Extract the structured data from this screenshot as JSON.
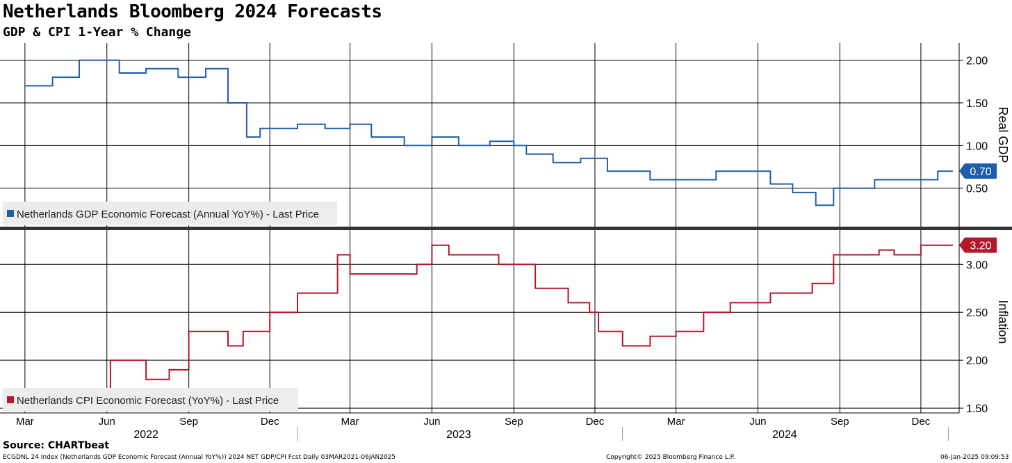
{
  "header": {
    "title": "Netherlands Bloomberg 2024 Forecasts",
    "subtitle": "GDP & CPI 1-Year % Change"
  },
  "footer": {
    "source": "Source: CHARTbeat",
    "description": "ECGDNL 24 Index (Netherlands GDP Economic Forecast (Annual YoY%)) 2024 NET GDP/CPI Fcst  Daily 03MAR2021-06JAN2025",
    "copyright": "Copyright© 2025 Bloomberg Finance L.P.",
    "timestamp": "06-Jan-2025 09:09:53"
  },
  "colors": {
    "gdp": "#1f5ea8",
    "cpi": "#b2182b",
    "grid": "#000000"
  },
  "chart_data": [
    {
      "type": "line",
      "panel": "top",
      "ylabel": "Real GDP",
      "ylim": [
        0.05,
        2.2
      ],
      "yticks": [
        "0.50",
        "1.00",
        "1.50",
        "2.00"
      ],
      "grid": true,
      "legend": "bottom-left",
      "last_value_label": "0.70",
      "series": [
        {
          "name": "Netherlands GDP Economic Forecast (Annual YoY%) - Last Price",
          "points": [
            [
              "2022-03-01",
              1.7
            ],
            [
              "2022-04-01",
              1.8
            ],
            [
              "2022-05-01",
              2.0
            ],
            [
              "2022-06-15",
              1.85
            ],
            [
              "2022-07-15",
              1.9
            ],
            [
              "2022-08-20",
              1.8
            ],
            [
              "2022-09-20",
              1.9
            ],
            [
              "2022-10-15",
              1.5
            ],
            [
              "2022-11-05",
              1.1
            ],
            [
              "2022-11-20",
              1.2
            ],
            [
              "2022-12-05",
              1.2
            ],
            [
              "2023-01-01",
              1.25
            ],
            [
              "2023-02-01",
              1.2
            ],
            [
              "2023-03-01",
              1.25
            ],
            [
              "2023-03-25",
              1.1
            ],
            [
              "2023-04-15",
              1.1
            ],
            [
              "2023-05-01",
              1.0
            ],
            [
              "2023-06-01",
              1.1
            ],
            [
              "2023-07-01",
              1.0
            ],
            [
              "2023-08-05",
              1.05
            ],
            [
              "2023-09-01",
              1.0
            ],
            [
              "2023-09-15",
              0.9
            ],
            [
              "2023-10-15",
              0.8
            ],
            [
              "2023-11-15",
              0.85
            ],
            [
              "2023-12-15",
              0.7
            ],
            [
              "2024-02-01",
              0.6
            ],
            [
              "2024-03-15",
              0.6
            ],
            [
              "2024-04-15",
              0.7
            ],
            [
              "2024-06-15",
              0.55
            ],
            [
              "2024-07-10",
              0.45
            ],
            [
              "2024-08-05",
              0.3
            ],
            [
              "2024-08-25",
              0.5
            ],
            [
              "2024-10-10",
              0.6
            ],
            [
              "2024-12-01",
              0.6
            ],
            [
              "2024-12-20",
              0.7
            ],
            [
              "2025-01-06",
              0.7
            ]
          ]
        }
      ]
    },
    {
      "type": "line",
      "panel": "bottom",
      "ylabel": "Inflation",
      "ylim": [
        1.45,
        3.35
      ],
      "yticks": [
        "1.50",
        "2.00",
        "2.50",
        "3.00"
      ],
      "grid": true,
      "legend": "bottom-left",
      "last_value_label": "3.20",
      "series": [
        {
          "name": "Netherlands CPI Economic Forecast (YoY%) - Last Price",
          "points": [
            [
              "2022-04-15",
              1.6
            ],
            [
              "2022-05-10",
              1.65
            ],
            [
              "2022-06-05",
              2.0
            ],
            [
              "2022-07-15",
              1.8
            ],
            [
              "2022-08-10",
              1.9
            ],
            [
              "2022-09-01",
              2.3
            ],
            [
              "2022-10-15",
              2.15
            ],
            [
              "2022-11-01",
              2.3
            ],
            [
              "2022-12-01",
              2.5
            ],
            [
              "2023-01-01",
              2.7
            ],
            [
              "2023-02-15",
              3.1
            ],
            [
              "2023-03-01",
              2.9
            ],
            [
              "2023-04-01",
              2.9
            ],
            [
              "2023-05-01",
              2.9
            ],
            [
              "2023-05-15",
              3.0
            ],
            [
              "2023-06-01",
              3.2
            ],
            [
              "2023-06-20",
              3.1
            ],
            [
              "2023-08-01",
              3.1
            ],
            [
              "2023-08-15",
              3.0
            ],
            [
              "2023-09-10",
              3.0
            ],
            [
              "2023-09-25",
              2.75
            ],
            [
              "2023-11-01",
              2.6
            ],
            [
              "2023-11-25",
              2.5
            ],
            [
              "2023-12-05",
              2.3
            ],
            [
              "2024-01-01",
              2.15
            ],
            [
              "2024-02-01",
              2.25
            ],
            [
              "2024-03-01",
              2.3
            ],
            [
              "2024-04-01",
              2.5
            ],
            [
              "2024-05-01",
              2.6
            ],
            [
              "2024-06-15",
              2.7
            ],
            [
              "2024-08-01",
              2.8
            ],
            [
              "2024-08-25",
              3.1
            ],
            [
              "2024-10-15",
              3.15
            ],
            [
              "2024-11-01",
              3.1
            ],
            [
              "2024-12-01",
              3.2
            ],
            [
              "2025-01-06",
              3.2
            ]
          ]
        }
      ]
    }
  ],
  "x_axis": {
    "date_range": [
      "2022-02-01",
      "2025-01-13"
    ],
    "tick_dates": [
      "2022-03-01",
      "2022-06-01",
      "2022-09-01",
      "2022-12-01",
      "2023-03-01",
      "2023-06-01",
      "2023-09-01",
      "2023-12-01",
      "2024-03-01",
      "2024-06-01",
      "2024-09-01",
      "2024-12-01"
    ],
    "month_labels": [
      "Mar",
      "Jun",
      "Sep",
      "Dec",
      "Mar",
      "Jun",
      "Sep",
      "Dec",
      "Mar",
      "Jun",
      "Sep",
      "Dec"
    ],
    "years": [
      {
        "label": "2022",
        "mid": "2022-07-15"
      },
      {
        "label": "2023",
        "mid": "2023-07-01"
      },
      {
        "label": "2024",
        "mid": "2024-07-01"
      }
    ],
    "year_dividers": [
      "2023-01-01",
      "2024-01-01",
      "2025-01-01"
    ]
  }
}
